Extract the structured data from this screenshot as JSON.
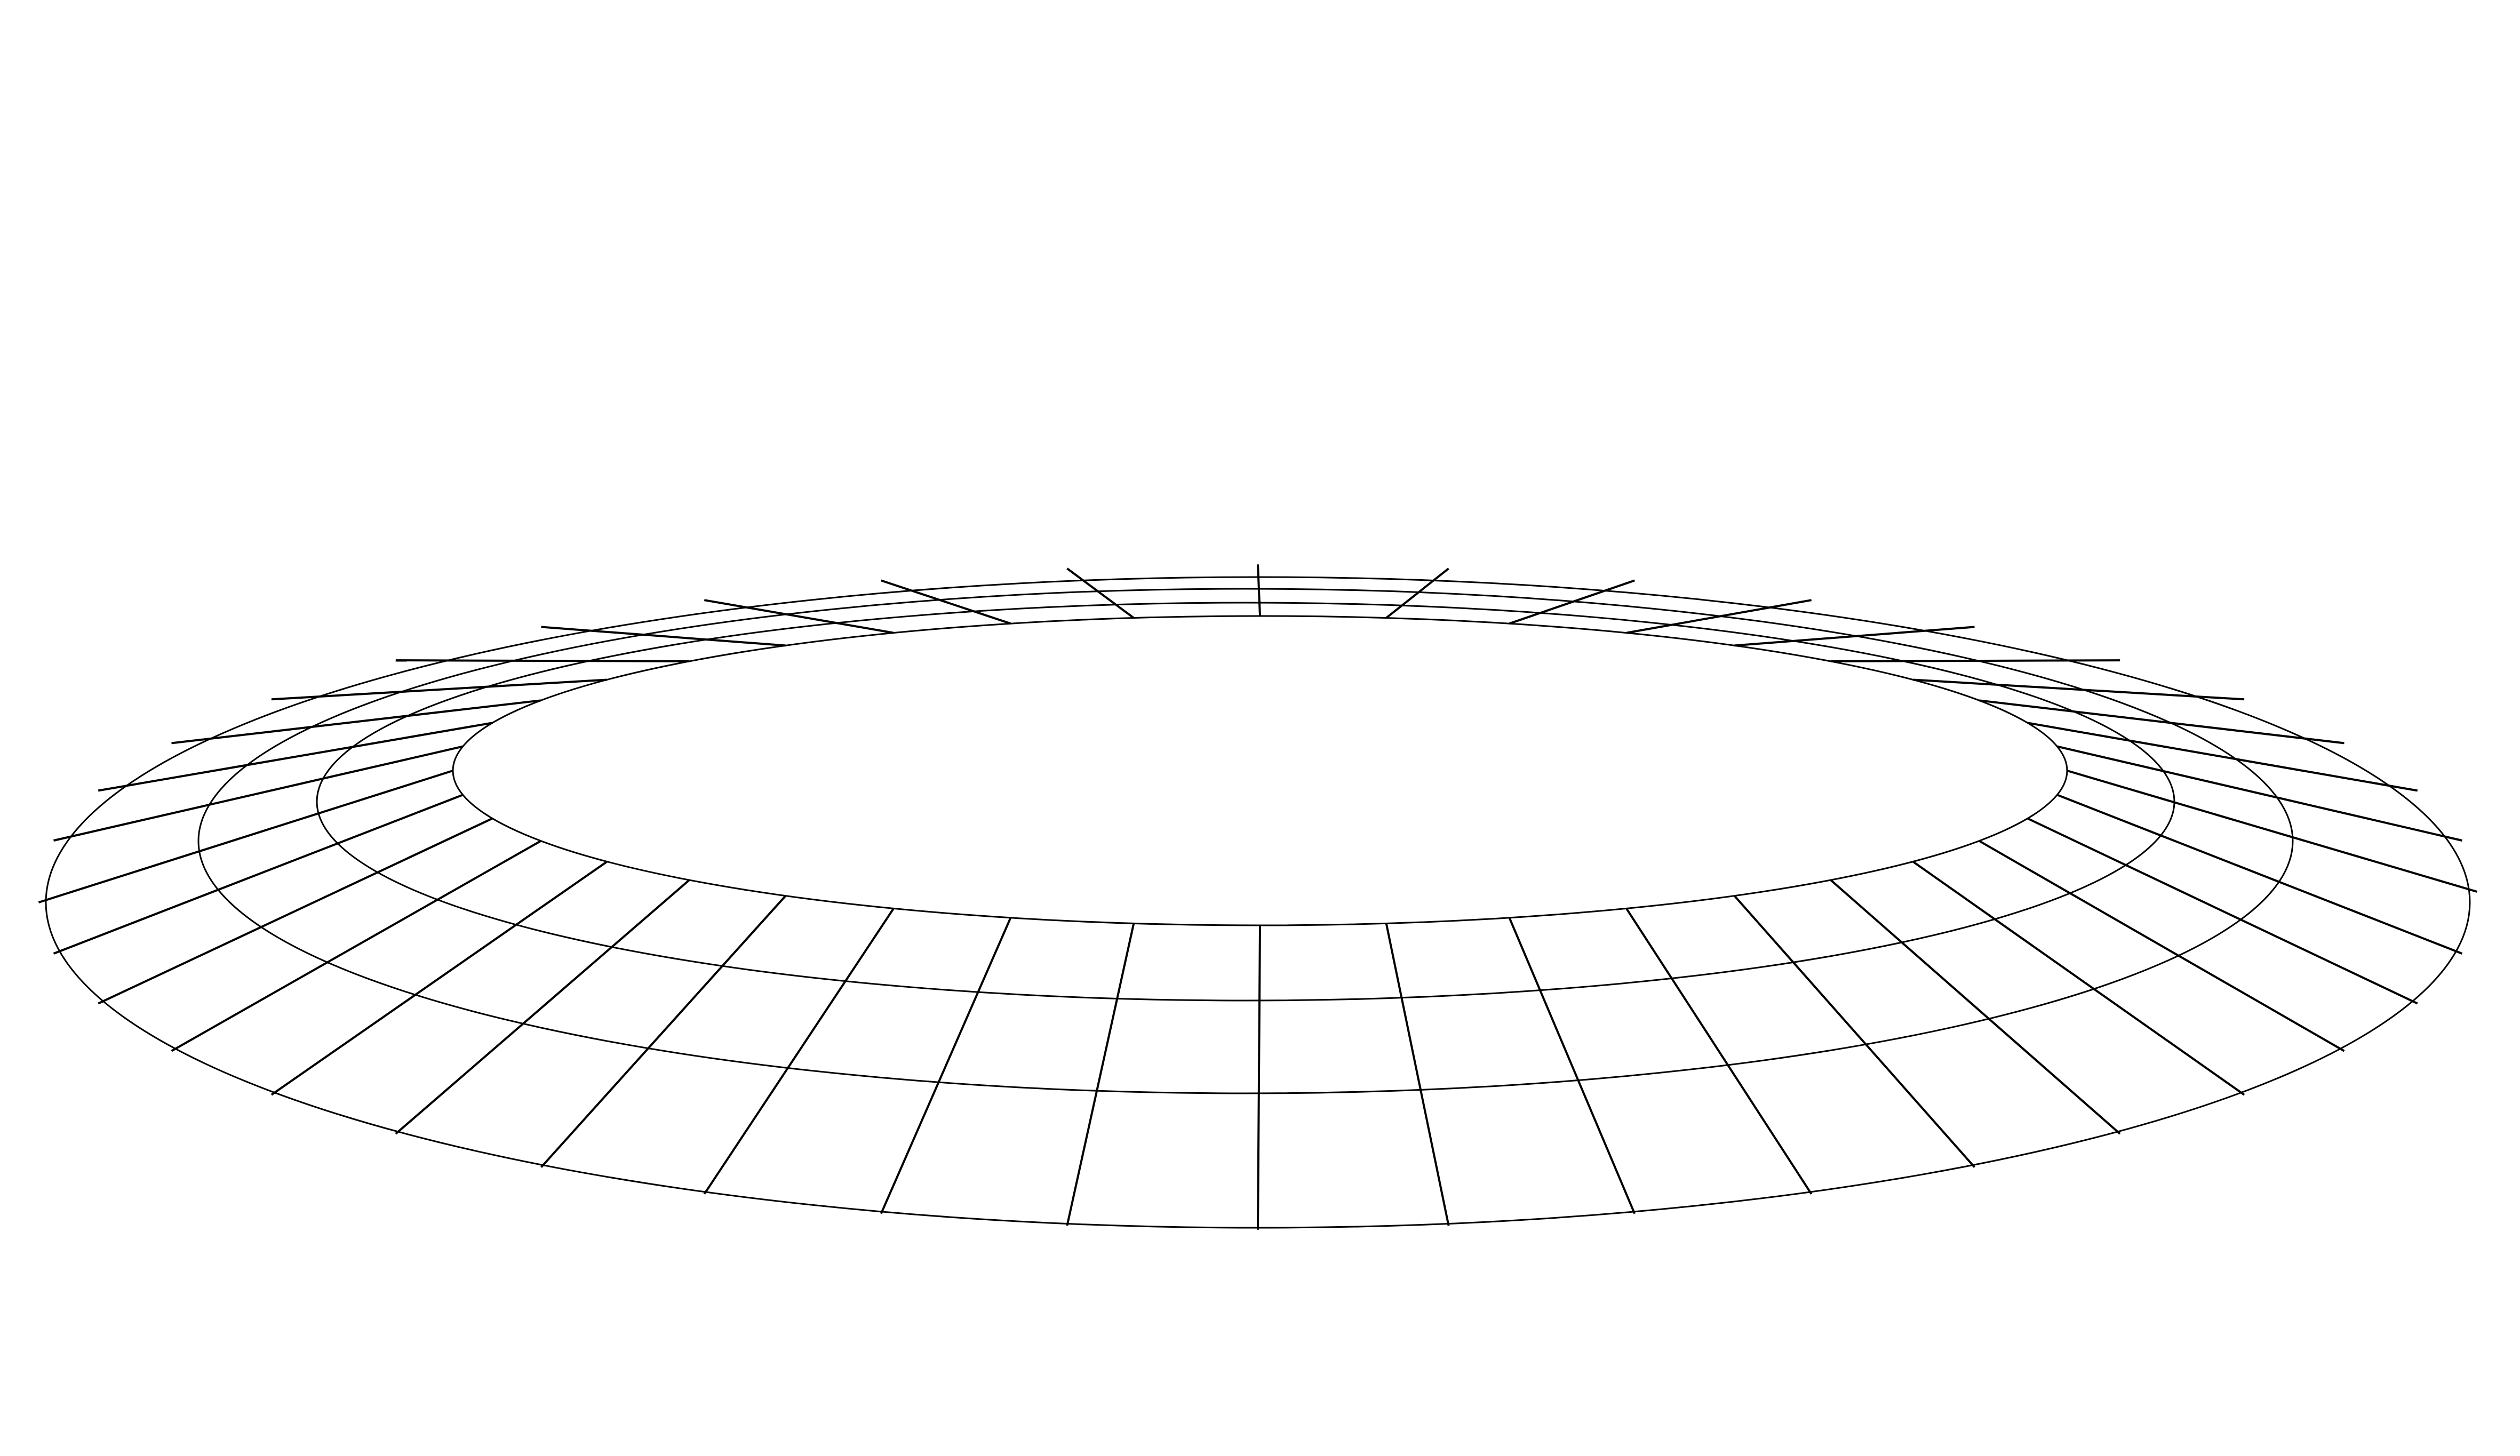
{
  "diagram": {
    "kind": "perspective-annulus-grid",
    "ring_count": 4,
    "spoke_count": 40,
    "line_color": "#000000",
    "background_color": "#ffffff"
  }
}
